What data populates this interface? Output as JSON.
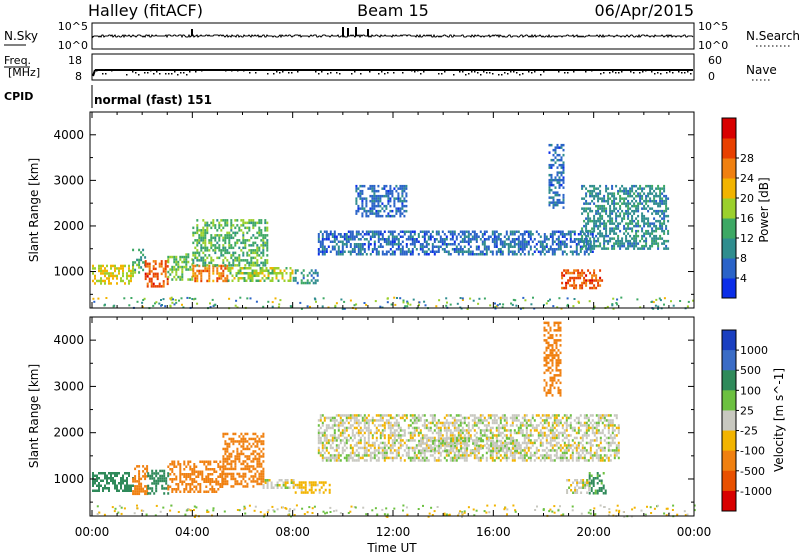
{
  "header": {
    "station": "Halley (fitACF)",
    "beam": "Beam 15",
    "date": "06/Apr/2015"
  },
  "top_panels": {
    "nsky_label": "N.Sky",
    "nsky_ticks": [
      "10^5",
      "10^0"
    ],
    "nsearch_label": "N.Search",
    "nsearch_ticks": [
      "10^5",
      "10^0"
    ],
    "freq_label_1": "Freq.",
    "freq_label_2": "[MHz]",
    "freq_ticks": [
      "18",
      "8"
    ],
    "nave_label": "Nave",
    "nave_ticks": [
      "60",
      "0"
    ],
    "cpid_label": "CPID",
    "cpid_text": "normal (fast) 151"
  },
  "x_axis": {
    "label": "Time UT",
    "ticks": [
      "00:00",
      "04:00",
      "08:00",
      "12:00",
      "16:00",
      "20:00",
      "00:00"
    ]
  },
  "chart_data": [
    {
      "type": "heatmap",
      "title": "",
      "xlabel": "Time UT",
      "ylabel": "Slant Range [km]",
      "x_range_hours": [
        0,
        24
      ],
      "ylim": [
        200,
        4500
      ],
      "y_ticks": [
        1000,
        2000,
        3000,
        4000
      ],
      "colorbar": {
        "label": "Power [dB]",
        "range": [
          0,
          32
        ],
        "ticks": [
          "4",
          "8",
          "12",
          "16",
          "20",
          "24",
          "28"
        ],
        "colors": [
          "#0b2ee8",
          "#2a63c8",
          "#2f8d8e",
          "#3da864",
          "#9bd02c",
          "#f2b400",
          "#f08010",
          "#e84000",
          "#d80000"
        ]
      },
      "echo_regions": [
        {
          "t": [
            0.0,
            1.6
          ],
          "r": [
            750,
            1150
          ],
          "power": 18
        },
        {
          "t": [
            1.6,
            2.1
          ],
          "r": [
            1000,
            1500
          ],
          "power": 12
        },
        {
          "t": [
            2.1,
            3.0
          ],
          "r": [
            700,
            1250
          ],
          "power": 26
        },
        {
          "t": [
            3.0,
            4.0
          ],
          "r": [
            800,
            1400
          ],
          "power": 14
        },
        {
          "t": [
            4.0,
            5.4
          ],
          "r": [
            800,
            1150
          ],
          "power": 24
        },
        {
          "t": [
            4.0,
            7.0
          ],
          "r": [
            1150,
            2150
          ],
          "power": 13
        },
        {
          "t": [
            5.4,
            8.0
          ],
          "r": [
            800,
            1100
          ],
          "power": 16
        },
        {
          "t": [
            8.0,
            9.0
          ],
          "r": [
            750,
            1050
          ],
          "power": 9
        },
        {
          "t": [
            9.0,
            20.0
          ],
          "r": [
            1400,
            1900
          ],
          "power": 6
        },
        {
          "t": [
            10.5,
            12.5
          ],
          "r": [
            2200,
            2900
          ],
          "power": 6
        },
        {
          "t": [
            18.2,
            18.8
          ],
          "r": [
            2400,
            3800
          ],
          "power": 6
        },
        {
          "t": [
            18.7,
            20.3
          ],
          "r": [
            650,
            1050
          ],
          "power": 26
        },
        {
          "t": [
            19.5,
            23.0
          ],
          "r": [
            1500,
            2900
          ],
          "power": 9
        }
      ]
    },
    {
      "type": "heatmap",
      "title": "",
      "xlabel": "Time UT",
      "ylabel": "Slant Range [km]",
      "x_range_hours": [
        0,
        24
      ],
      "ylim": [
        200,
        4500
      ],
      "y_ticks": [
        1000,
        2000,
        3000,
        4000
      ],
      "colorbar": {
        "label": "Velocity [m s^-1]",
        "ticks": [
          "1000",
          "500",
          "100",
          "25",
          "-25",
          "-100",
          "-500",
          "-1000"
        ],
        "colors": [
          "#1a3fc0",
          "#3a6cc6",
          "#2f8a5a",
          "#6cc040",
          "#c8c8c0",
          "#f2b400",
          "#f08010",
          "#e85000",
          "#d80000"
        ]
      },
      "echo_regions": [
        {
          "t": [
            0.0,
            1.6
          ],
          "r": [
            750,
            1150
          ],
          "velocity": 200
        },
        {
          "t": [
            1.6,
            2.2
          ],
          "r": [
            700,
            1300
          ],
          "velocity": -300
        },
        {
          "t": [
            2.2,
            3.0
          ],
          "r": [
            700,
            1200
          ],
          "velocity": 150
        },
        {
          "t": [
            3.0,
            5.2
          ],
          "r": [
            750,
            1400
          ],
          "velocity": -300
        },
        {
          "t": [
            5.2,
            6.8
          ],
          "r": [
            850,
            2000
          ],
          "velocity": -400
        },
        {
          "t": [
            6.8,
            8.0
          ],
          "r": [
            800,
            1000
          ],
          "velocity": 0
        },
        {
          "t": [
            8.0,
            9.5
          ],
          "r": [
            700,
            950
          ],
          "velocity": -60
        },
        {
          "t": [
            9.0,
            21.0
          ],
          "r": [
            1400,
            2400
          ],
          "velocity": 0
        },
        {
          "t": [
            13.0,
            17.0
          ],
          "r": [
            1600,
            1900
          ],
          "velocity": 10
        },
        {
          "t": [
            18.0,
            18.7
          ],
          "r": [
            2800,
            4400
          ],
          "velocity": -400
        },
        {
          "t": [
            18.9,
            19.8
          ],
          "r": [
            700,
            1000
          ],
          "velocity": 0
        },
        {
          "t": [
            19.8,
            20.5
          ],
          "r": [
            700,
            1150
          ],
          "velocity": 120
        }
      ]
    }
  ]
}
